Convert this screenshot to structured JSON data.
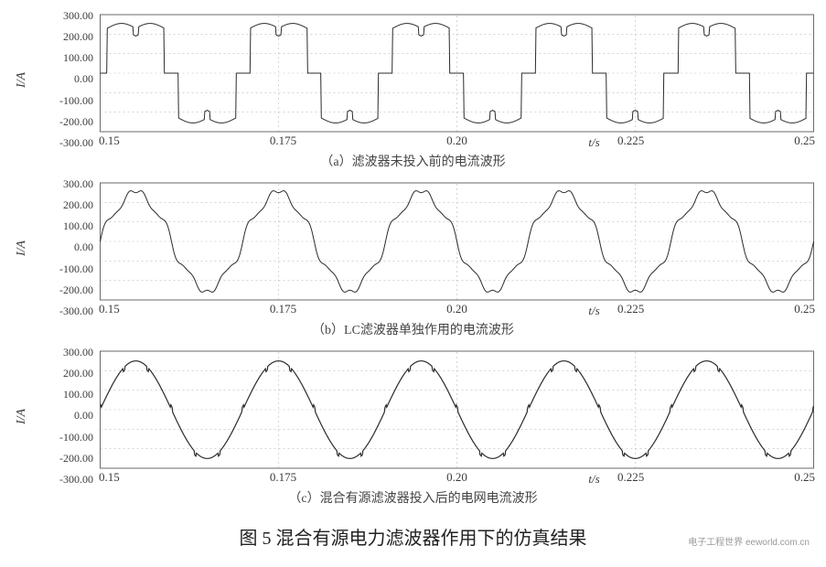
{
  "figure": {
    "main_caption": "图 5  混合有源电力滤波器作用下的仿真结果",
    "watermark": "电子工程世界  eeworld.com.cn",
    "colors": {
      "background": "#ffffff",
      "axis": "#6a6a6a",
      "grid": "#bcbcbc",
      "trace": "#2b2b2b",
      "text": "#3a3a3a"
    },
    "typography": {
      "caption_fontsize": 20,
      "subcaption_fontsize": 14,
      "tick_fontsize": 12,
      "label_fontsize": 14
    },
    "x_axis": {
      "label": "t/s",
      "min": 0.15,
      "max": 0.25,
      "ticks": [
        0.15,
        0.175,
        0.2,
        0.225,
        0.25
      ],
      "tick_labels": [
        "0.15",
        "0.175",
        "0.20",
        "0.225",
        "0.25"
      ]
    },
    "y_axis": {
      "label": "I/A",
      "min": -300,
      "max": 300,
      "ticks": [
        -300,
        -200,
        -100,
        0,
        100,
        200,
        300
      ],
      "tick_labels": [
        "-300.00",
        "-200.00",
        "-100.00",
        "0.00",
        "100.00",
        "200.00",
        "300.00"
      ]
    },
    "panels": [
      {
        "id": "a",
        "subcaption": "（a）滤波器未投入前的电流波形",
        "type": "line",
        "series_color": "#2b2b2b",
        "line_width": 1.0,
        "description": "Quasi-square current with two bumps per half-cycle, amplitude ≈ ±250 A, period 0.02 s (50 Hz)"
      },
      {
        "id": "b",
        "subcaption": "（b）LC滤波器单独作用的电流波形",
        "type": "line",
        "series_color": "#2b2b2b",
        "line_width": 1.0,
        "description": "Sine-like current with residual harmonic ripple, amplitude ≈ ±250 A, period 0.02 s"
      },
      {
        "id": "c",
        "subcaption": "（c）混合有源滤波器投入后的电网电流波形",
        "type": "line",
        "series_color": "#2b2b2b",
        "line_width": 1.2,
        "description": "Nearly clean sinusoid with small commutation notches, amplitude ≈ ±250 A, period 0.02 s"
      }
    ]
  }
}
